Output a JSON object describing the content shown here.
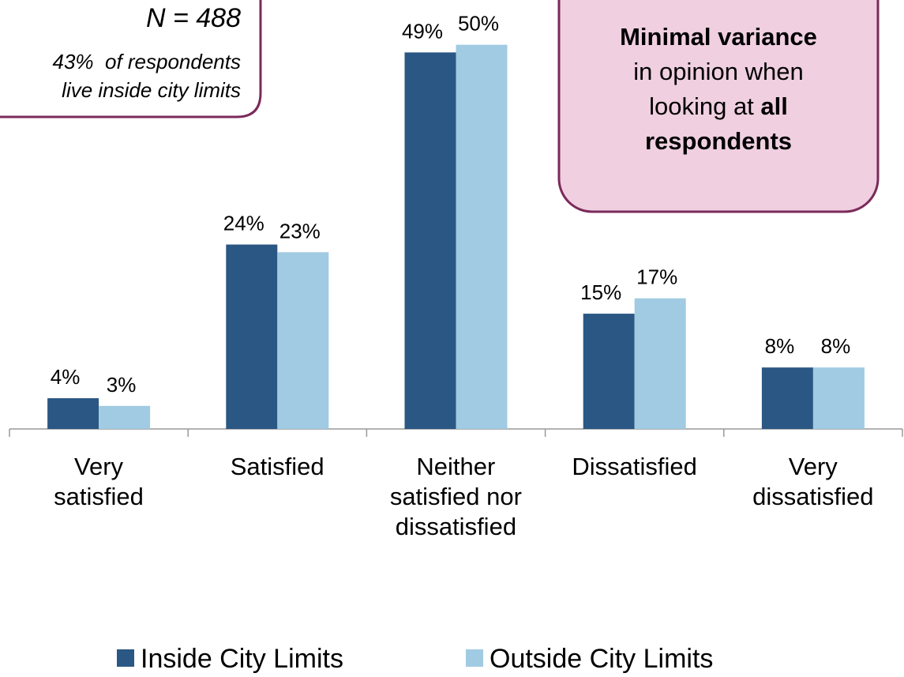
{
  "chart_data": {
    "type": "bar",
    "categories": [
      "Very\nsatisfied",
      "Satisfied",
      "Neither\nsatisfied nor\ndissatisfied",
      "Dissatisfied",
      "Very\ndissatisfied"
    ],
    "series": [
      {
        "name": "Inside City Limits",
        "color": "#2a5784",
        "values": [
          4,
          24,
          49,
          15,
          8
        ],
        "value_labels": [
          "4%",
          "24%",
          "49%",
          "15%",
          "8%"
        ]
      },
      {
        "name": "Outside City Limits",
        "color": "#a0cbe2",
        "values": [
          3,
          23,
          50,
          17,
          8
        ],
        "value_labels": [
          "3%",
          "23%",
          "50%",
          "17%",
          "8%"
        ]
      }
    ],
    "ylim": [
      0,
      55
    ],
    "legend": "bottom",
    "note": {
      "n": "N = 488",
      "text": "43%  of respondents\nlive inside city limits"
    },
    "callout": {
      "lines": [
        [
          {
            "text": "Minimal variance",
            "bold": true
          }
        ],
        [
          {
            "text": "in opinion when",
            "bold": false
          }
        ],
        [
          {
            "text": "looking at ",
            "bold": false
          },
          {
            "text": "all",
            "bold": true
          }
        ],
        [
          {
            "text": "respondents",
            "bold": true
          }
        ]
      ]
    }
  }
}
